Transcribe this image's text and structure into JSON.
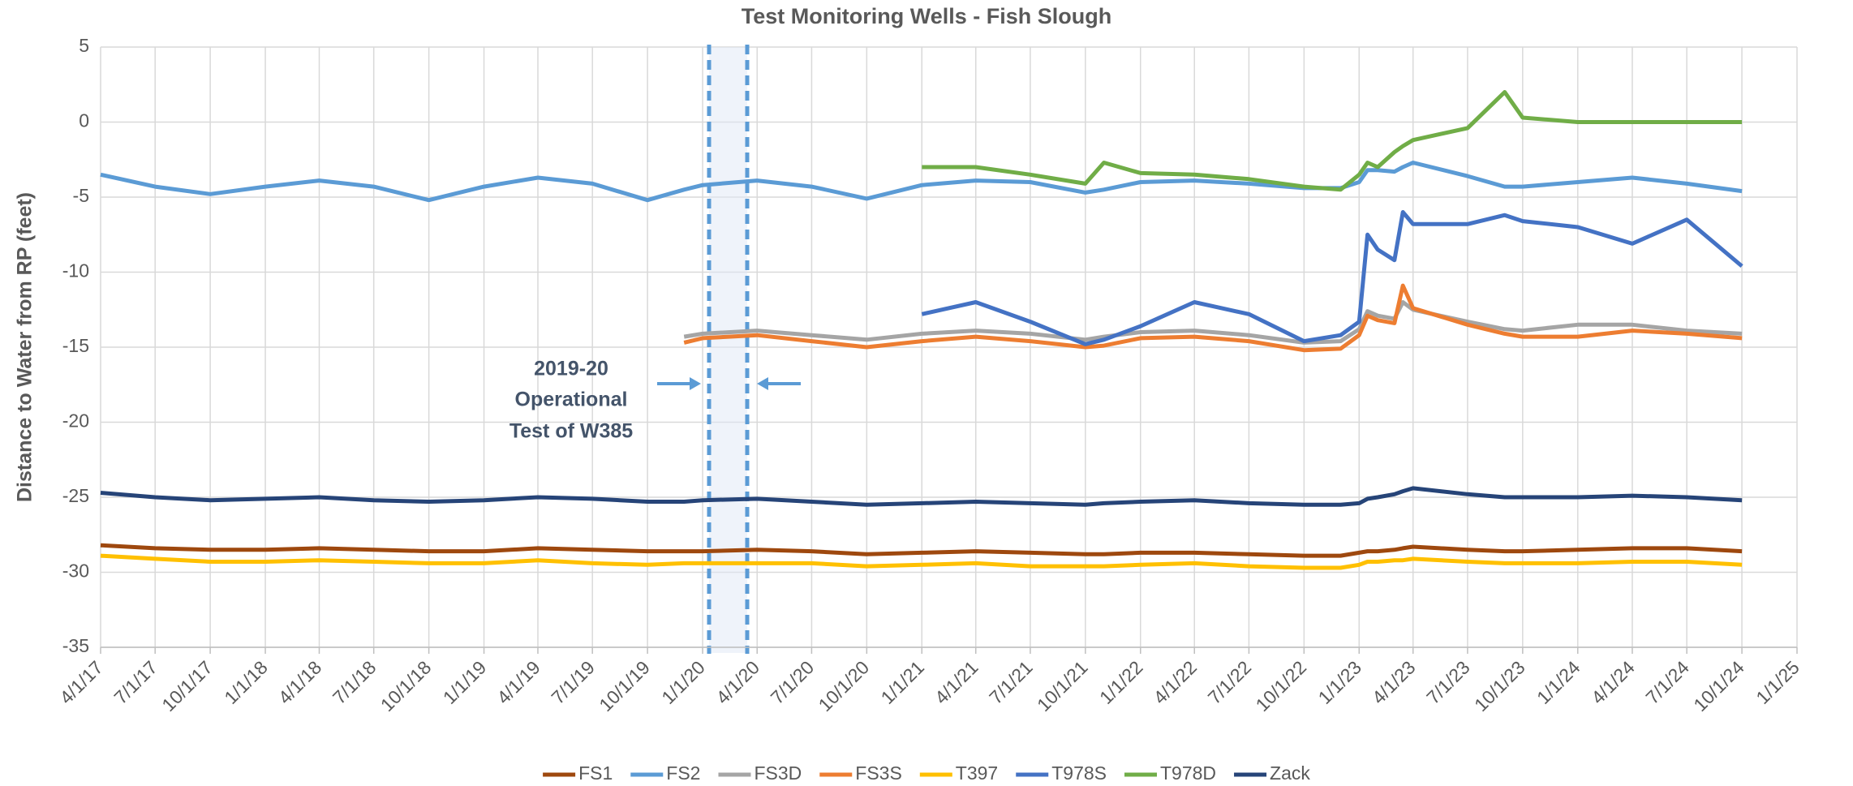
{
  "chart_data": {
    "type": "line",
    "title": "Test Monitoring Wells - Fish Slough",
    "y_label": "Distance to Water from RP (feet)",
    "annotation": [
      "2019-20",
      "Operational",
      "Test of W385"
    ],
    "x": [
      "2017-04-01",
      "2017-07-01",
      "2017-10-01",
      "2018-01-01",
      "2018-04-01",
      "2018-07-01",
      "2018-10-01",
      "2019-01-01",
      "2019-04-01",
      "2019-07-01",
      "2019-10-01",
      "2019-12-01",
      "2020-01-01",
      "2020-04-01",
      "2020-07-01",
      "2020-10-01",
      "2021-01-01",
      "2021-04-01",
      "2021-07-01",
      "2021-10-01",
      "2021-11-01",
      "2022-01-01",
      "2022-04-01",
      "2022-07-01",
      "2022-10-01",
      "2022-12-01",
      "2023-01-01",
      "2023-01-15",
      "2023-02-01",
      "2023-03-01",
      "2023-03-15",
      "2023-04-01",
      "2023-07-01",
      "2023-09-01",
      "2023-10-01",
      "2024-01-01",
      "2024-04-01",
      "2024-07-01",
      "2024-10-01"
    ],
    "series": [
      {
        "name": "FS1",
        "color": "#9e480e",
        "values": [
          -28.2,
          -28.4,
          -28.5,
          -28.5,
          -28.4,
          -28.5,
          -28.6,
          -28.6,
          -28.4,
          -28.5,
          -28.6,
          -28.6,
          -28.6,
          -28.5,
          -28.6,
          -28.8,
          -28.7,
          -28.6,
          -28.7,
          -28.8,
          -28.8,
          -28.7,
          -28.7,
          -28.8,
          -28.9,
          -28.9,
          -28.7,
          -28.6,
          -28.6,
          -28.5,
          -28.4,
          -28.3,
          -28.5,
          -28.6,
          -28.6,
          -28.5,
          -28.4,
          -28.4,
          -28.6
        ]
      },
      {
        "name": "FS2",
        "color": "#5b9bd5",
        "values": [
          -3.5,
          -4.3,
          -4.8,
          -4.3,
          -3.9,
          -4.3,
          -5.2,
          -4.3,
          -3.7,
          -4.1,
          -5.2,
          -4.5,
          -4.2,
          -3.9,
          -4.3,
          -5.1,
          -4.2,
          -3.9,
          -4.0,
          -4.7,
          -4.5,
          -4.0,
          -3.9,
          -4.1,
          -4.4,
          -4.4,
          -4.0,
          -3.2,
          -3.2,
          -3.3,
          -3.0,
          -2.7,
          -3.6,
          -4.3,
          -4.3,
          -4.0,
          -3.7,
          -4.1,
          -4.6
        ]
      },
      {
        "name": "FS3D",
        "color": "#a5a5a5",
        "values": [
          null,
          null,
          null,
          null,
          null,
          null,
          null,
          null,
          null,
          null,
          null,
          -14.3,
          -14.1,
          -13.9,
          -14.2,
          -14.5,
          -14.1,
          -13.9,
          -14.1,
          -14.5,
          -14.3,
          -14.0,
          -13.9,
          -14.2,
          -14.7,
          -14.6,
          -13.8,
          -12.6,
          -12.9,
          -13.1,
          -12.0,
          -12.5,
          -13.3,
          -13.8,
          -13.9,
          -13.5,
          -13.5,
          -13.9,
          -14.1
        ]
      },
      {
        "name": "FS3S",
        "color": "#ed7d31",
        "values": [
          null,
          null,
          null,
          null,
          null,
          null,
          null,
          null,
          null,
          null,
          null,
          -14.7,
          -14.4,
          -14.2,
          -14.6,
          -15.0,
          -14.6,
          -14.3,
          -14.6,
          -15.0,
          -14.9,
          -14.4,
          -14.3,
          -14.6,
          -15.2,
          -15.1,
          -14.2,
          -12.9,
          -13.2,
          -13.4,
          -10.9,
          -12.4,
          -13.5,
          -14.1,
          -14.3,
          -14.3,
          -13.9,
          -14.1,
          -14.4
        ]
      },
      {
        "name": "T397",
        "color": "#ffc000",
        "values": [
          -28.9,
          -29.1,
          -29.3,
          -29.3,
          -29.2,
          -29.3,
          -29.4,
          -29.4,
          -29.2,
          -29.4,
          -29.5,
          -29.4,
          -29.4,
          -29.4,
          -29.4,
          -29.6,
          -29.5,
          -29.4,
          -29.6,
          -29.6,
          -29.6,
          -29.5,
          -29.4,
          -29.6,
          -29.7,
          -29.7,
          -29.5,
          -29.3,
          -29.3,
          -29.2,
          -29.2,
          -29.1,
          -29.3,
          -29.4,
          -29.4,
          -29.4,
          -29.3,
          -29.3,
          -29.5
        ]
      },
      {
        "name": "T978S",
        "color": "#4472c4",
        "values": [
          null,
          null,
          null,
          null,
          null,
          null,
          null,
          null,
          null,
          null,
          null,
          null,
          null,
          null,
          null,
          null,
          -12.8,
          -12.0,
          -13.3,
          -14.8,
          -14.5,
          -13.6,
          -12.0,
          -12.8,
          -14.6,
          -14.2,
          -13.3,
          -7.5,
          -8.5,
          -9.2,
          -6.0,
          -6.8,
          -6.8,
          -6.2,
          -6.6,
          -7.0,
          -8.1,
          -6.5,
          -9.6
        ]
      },
      {
        "name": "T978D",
        "color": "#70ad47",
        "values": [
          null,
          null,
          null,
          null,
          null,
          null,
          null,
          null,
          null,
          null,
          null,
          null,
          null,
          null,
          null,
          null,
          -3.0,
          -3.0,
          -3.5,
          -4.1,
          -2.7,
          -3.4,
          -3.5,
          -3.8,
          -4.3,
          -4.5,
          -3.5,
          -2.7,
          -3.0,
          -2.0,
          -1.6,
          -1.2,
          -0.4,
          2.0,
          0.3,
          0,
          0,
          0,
          0
        ]
      },
      {
        "name": "Zack",
        "color": "#264478",
        "values": [
          -24.7,
          -25.0,
          -25.2,
          -25.1,
          -25.0,
          -25.2,
          -25.3,
          -25.2,
          -25.0,
          -25.1,
          -25.3,
          -25.3,
          -25.2,
          -25.1,
          -25.3,
          -25.5,
          -25.4,
          -25.3,
          -25.4,
          -25.5,
          -25.4,
          -25.3,
          -25.2,
          -25.4,
          -25.5,
          -25.5,
          -25.4,
          -25.1,
          -25.0,
          -24.8,
          -24.6,
          -24.4,
          -24.8,
          -25.0,
          -25.0,
          -25.0,
          -24.9,
          -25.0,
          -25.2
        ]
      }
    ],
    "xlim": [
      "2017-04-01",
      "2025-01-01"
    ],
    "xticks": [
      {
        "value": "2017-04-01",
        "label": "4/1/17"
      },
      {
        "value": "2017-07-01",
        "label": "7/1/17"
      },
      {
        "value": "2017-10-01",
        "label": "10/1/17"
      },
      {
        "value": "2018-01-01",
        "label": "1/1/18"
      },
      {
        "value": "2018-04-01",
        "label": "4/1/18"
      },
      {
        "value": "2018-07-01",
        "label": "7/1/18"
      },
      {
        "value": "2018-10-01",
        "label": "10/1/18"
      },
      {
        "value": "2019-01-01",
        "label": "1/1/19"
      },
      {
        "value": "2019-04-01",
        "label": "4/1/19"
      },
      {
        "value": "2019-07-01",
        "label": "7/1/19"
      },
      {
        "value": "2019-10-01",
        "label": "10/1/19"
      },
      {
        "value": "2020-01-01",
        "label": "1/1/20"
      },
      {
        "value": "2020-04-01",
        "label": "4/1/20"
      },
      {
        "value": "2020-07-01",
        "label": "7/1/20"
      },
      {
        "value": "2020-10-01",
        "label": "10/1/20"
      },
      {
        "value": "2021-01-01",
        "label": "1/1/21"
      },
      {
        "value": "2021-04-01",
        "label": "4/1/21"
      },
      {
        "value": "2021-07-01",
        "label": "7/1/21"
      },
      {
        "value": "2021-10-01",
        "label": "10/1/21"
      },
      {
        "value": "2022-01-01",
        "label": "1/1/22"
      },
      {
        "value": "2022-04-01",
        "label": "4/1/22"
      },
      {
        "value": "2022-07-01",
        "label": "7/1/22"
      },
      {
        "value": "2022-10-01",
        "label": "10/1/22"
      },
      {
        "value": "2023-01-01",
        "label": "1/1/23"
      },
      {
        "value": "2023-04-01",
        "label": "4/1/23"
      },
      {
        "value": "2023-07-01",
        "label": "7/1/23"
      },
      {
        "value": "2023-10-01",
        "label": "10/1/23"
      },
      {
        "value": "2024-01-01",
        "label": "1/1/24"
      },
      {
        "value": "2024-04-01",
        "label": "4/1/24"
      },
      {
        "value": "2024-07-01",
        "label": "7/1/24"
      },
      {
        "value": "2024-10-01",
        "label": "10/1/24"
      },
      {
        "value": "2025-01-01",
        "label": "1/1/25"
      }
    ],
    "ylim": [
      -35,
      5
    ],
    "yticks": [
      -35,
      -30,
      -25,
      -20,
      -15,
      -10,
      -5,
      0,
      5
    ],
    "grid": true,
    "legend": "bottom"
  }
}
